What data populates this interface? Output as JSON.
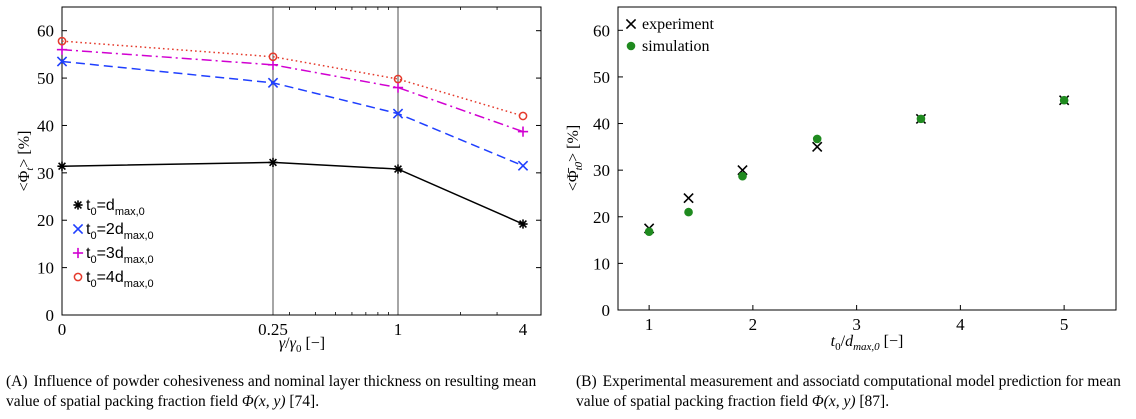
{
  "chart_data": [
    {
      "id": "A",
      "type": "line",
      "title": "",
      "xlabel": "γ/γ₀ [−]",
      "ylabel": "<Φ_t> [%]",
      "x_scale": "log-like (0, 0.25, 1, 4)",
      "x": [
        0,
        0.25,
        1,
        4
      ],
      "x_tick_labels": [
        "0",
        "0.25",
        "1",
        "4"
      ],
      "ylim": [
        0,
        65
      ],
      "y_ticks": [
        0,
        10,
        20,
        30,
        40,
        50,
        60
      ],
      "grid": false,
      "legend_position": "bottom-left",
      "series": [
        {
          "name": "t0=dmax,0",
          "legend": {
            "main": "t",
            "sub1": "0",
            "mid": "=d",
            "sub2": "max,0"
          },
          "values": [
            31.4,
            32.2,
            30.8,
            19.2
          ],
          "color": "#000000",
          "marker": "asterisk",
          "line": "solid"
        },
        {
          "name": "t0=2dmax,0",
          "legend": {
            "main": "t",
            "sub1": "0",
            "mid": "=2d",
            "sub2": "max,0"
          },
          "values": [
            53.5,
            49.0,
            42.5,
            31.5
          ],
          "color": "#1f3fff",
          "marker": "x",
          "line": "dashed"
        },
        {
          "name": "t0=3dmax,0",
          "legend": {
            "main": "t",
            "sub1": "0",
            "mid": "=3d",
            "sub2": "max,0"
          },
          "values": [
            56.0,
            52.8,
            48.0,
            38.7
          ],
          "color": "#d100d1",
          "marker": "plus",
          "line": "dashdot"
        },
        {
          "name": "t0=4dmax,0",
          "legend": {
            "main": "t",
            "sub1": "0",
            "mid": "=4d",
            "sub2": "max,0"
          },
          "values": [
            57.8,
            54.5,
            49.8,
            42.0
          ],
          "color": "#e53a2c",
          "marker": "circle",
          "line": "dotted"
        }
      ]
    },
    {
      "id": "B",
      "type": "scatter",
      "title": "",
      "xlabel": "t₀/d_max,0 [−]",
      "ylabel": "<Φ̄_t0> [%]",
      "xlim": [
        0.7,
        5.5
      ],
      "x_ticks": [
        1,
        2,
        3,
        4,
        5
      ],
      "ylim": [
        0,
        65
      ],
      "y_ticks": [
        0,
        10,
        20,
        30,
        40,
        50,
        60
      ],
      "grid": false,
      "legend_position": "top-left",
      "series": [
        {
          "name": "experiment",
          "color": "#000000",
          "marker": "x",
          "x": [
            1.0,
            1.38,
            1.9,
            2.62,
            3.62,
            5.0
          ],
          "y": [
            17.5,
            24.0,
            30.0,
            35.0,
            41.0,
            45.0
          ]
        },
        {
          "name": "simulation",
          "color": "#1f8a1f",
          "marker": "dot",
          "x": [
            1.0,
            1.38,
            1.9,
            2.62,
            3.62,
            5.0
          ],
          "y": [
            16.8,
            21.0,
            28.7,
            36.7,
            41.0,
            45.0
          ]
        }
      ]
    }
  ],
  "captions": {
    "a": {
      "label": "(A)",
      "text_1": "Influence of powder cohesiveness and nominal layer thickness on resulting mean value of spatial packing fraction field ",
      "phi": "Φ(x, y)",
      "text_2": " [74]."
    },
    "b": {
      "label": "(B)",
      "text_1": "Experimental measurement and associatd computational model prediction for mean value of spatial packing fraction field ",
      "phi": "Φ(x, y)",
      "text_2": " [87]."
    }
  }
}
